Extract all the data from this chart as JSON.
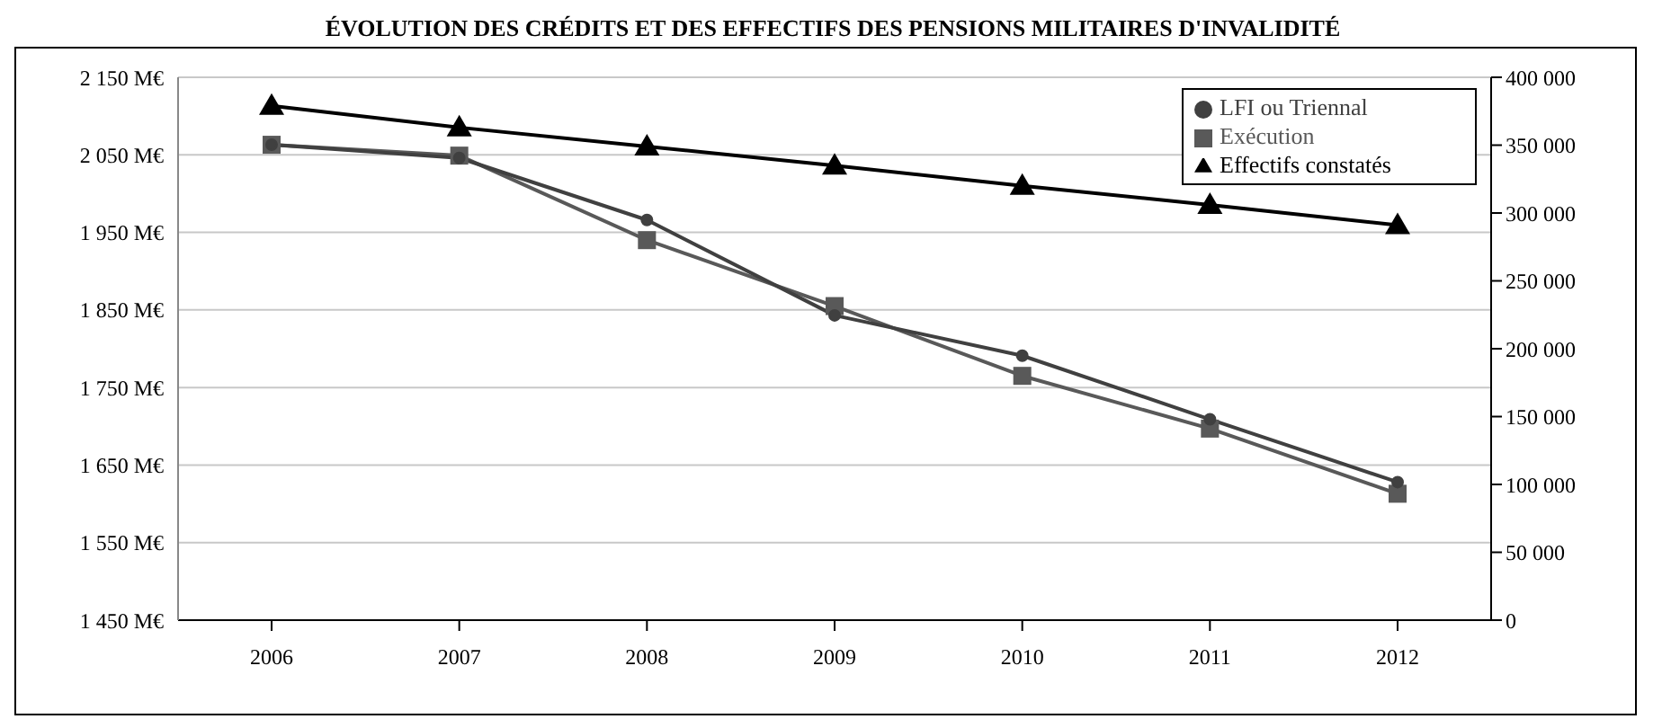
{
  "chart_data": {
    "type": "line",
    "title": "ÉVOLUTION DES CRÉDITS ET DES EFFECTIFS DES PENSIONS MILITAIRES D'INVALIDITÉ",
    "categories": [
      "2006",
      "2007",
      "2008",
      "2009",
      "2010",
      "2011",
      "2012"
    ],
    "series": [
      {
        "name": "LFI ou Triennal",
        "color": "#404040",
        "marker": "circle",
        "values": [
          2063,
          2046,
          1966,
          1843,
          1791,
          1709,
          1628
        ]
      },
      {
        "name": "Exécution",
        "color": "#595959",
        "marker": "square",
        "values": [
          2063,
          2049,
          1940,
          1855,
          1765,
          1697,
          1613
        ]
      },
      {
        "name": "Effectifs constatés",
        "color": "#000000",
        "marker": "triangle",
        "axis": "y2",
        "values": [
          379000,
          363000,
          349000,
          335000,
          320000,
          306000,
          291000
        ]
      }
    ],
    "ylim": [
      1450,
      2150
    ],
    "yticks": [
      {
        "value": 1450,
        "label": "1 450 M€"
      },
      {
        "value": 1550,
        "label": "1 550 M€"
      },
      {
        "value": 1650,
        "label": "1 650 M€"
      },
      {
        "value": 1750,
        "label": "1 750 M€"
      },
      {
        "value": 1850,
        "label": "1 850 M€"
      },
      {
        "value": 1950,
        "label": "1 950 M€"
      },
      {
        "value": 2050,
        "label": "2 050 M€"
      },
      {
        "value": 2150,
        "label": "2 150 M€"
      }
    ],
    "y2lim": [
      0,
      400000
    ],
    "y2ticks": [
      0,
      {
        "value": 50000,
        "label": "50 000"
      },
      {
        "value": 100000,
        "label": "100 000"
      },
      {
        "value": 150000,
        "label": "150 000"
      },
      {
        "value": 200000,
        "label": "200 000"
      },
      {
        "value": 250000,
        "label": "250 000"
      },
      {
        "value": 300000,
        "label": "300 000"
      },
      {
        "value": 350000,
        "label": "350 000"
      },
      {
        "value": 400000,
        "label": "400 000"
      }
    ],
    "grid": "y",
    "legend": "top right"
  }
}
